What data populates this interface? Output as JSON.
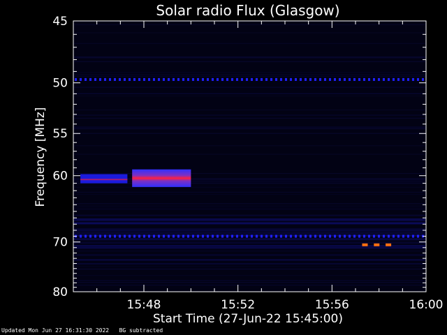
{
  "chart_data": {
    "type": "heatmap",
    "title": "Solar radio Flux (Glasgow)",
    "xlabel": "Start Time (27-Jun-22 15:45:00)",
    "ylabel": "Frequency [MHz]",
    "x_ticks": [
      "15:48",
      "15:52",
      "15:56",
      "16:00"
    ],
    "x_tick_minutes": [
      3,
      7,
      11,
      15
    ],
    "xlim_minutes": [
      0,
      15
    ],
    "y_ticks": [
      45,
      50,
      55,
      60,
      70,
      80
    ],
    "ylim_mhz": [
      45,
      80
    ],
    "y_scale": "reciprocal",
    "colorscale": [
      "#000010",
      "#0a0a80",
      "#2020ff",
      "#ff2030",
      "#ff7010"
    ],
    "features": [
      {
        "name": "type-III-burst",
        "t_start_min": 2.5,
        "t_end_min": 5.0,
        "f_low_mhz": 59.2,
        "f_high_mhz": 61.5,
        "peak_mhz": 60.4,
        "level": "high"
      },
      {
        "name": "early-emission",
        "t_start_min": 0.3,
        "t_end_min": 2.3,
        "f_low_mhz": 59.8,
        "f_high_mhz": 61.0,
        "peak_mhz": 60.5,
        "level": "medium"
      },
      {
        "name": "rfi-50mhz",
        "f_mhz": 49.7,
        "t_start_min": 0.0,
        "t_end_min": 15.0,
        "level": "low"
      },
      {
        "name": "rfi-69mhz",
        "f_mhz": 69.0,
        "t_start_min": 0.0,
        "t_end_min": 15.0,
        "level": "low"
      },
      {
        "name": "rfi-70mhz-spikes",
        "f_mhz": 70.5,
        "t_min": [
          12.4,
          12.9,
          13.4
        ],
        "level": "peak"
      }
    ]
  },
  "footer": {
    "updated": "Updated Mon Jun 27 16:31:30 2022",
    "note": "BG subtracted"
  }
}
